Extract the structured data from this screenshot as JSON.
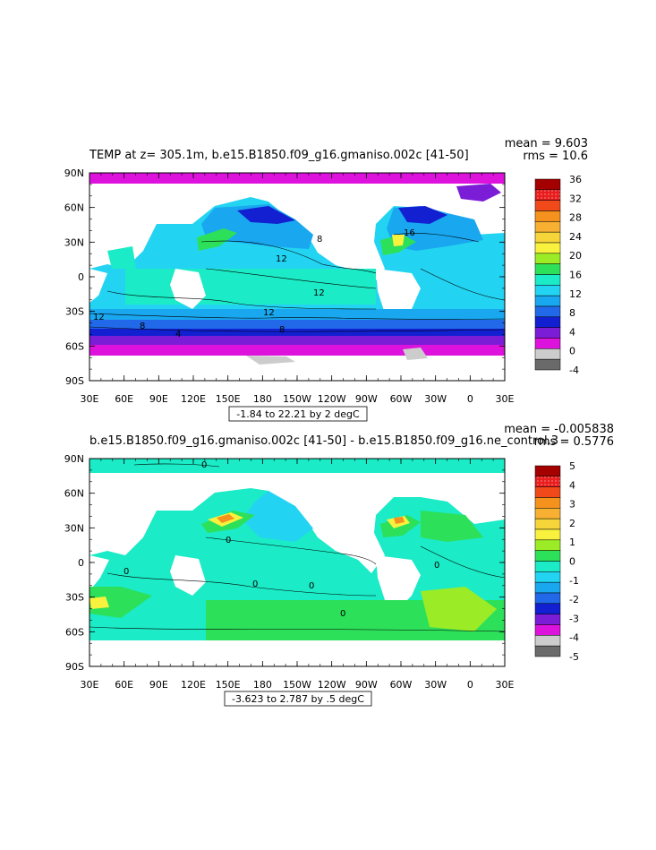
{
  "chart_data": [
    {
      "type": "heatmap",
      "title": "TEMP at z= 305.1m, b.e15.B1850.f09_g16.gmaniso.002c [41-50]",
      "stats": {
        "mean": "mean = 9.603",
        "rms": "rms = 10.6"
      },
      "range_label": "-1.84 to 22.21 by 2 degC",
      "xticks": [
        "30E",
        "60E",
        "90E",
        "120E",
        "150E",
        "180",
        "150W",
        "120W",
        "90W",
        "60W",
        "30W",
        "0",
        "30E"
      ],
      "yticks": [
        "90N",
        "60N",
        "30N",
        "0",
        "30S",
        "60S",
        "90S"
      ],
      "xlim": [
        30,
        390
      ],
      "ylim": [
        -90,
        90
      ],
      "colorbar": {
        "levels": [
          "36",
          "32",
          "28",
          "24",
          "20",
          "16",
          "12",
          "8",
          "4",
          "0",
          "-4"
        ],
        "colors": [
          "#a50000",
          "#dd1a1a",
          "#f04a1a",
          "#f5921e",
          "#f7b032",
          "#f6d53a",
          "#f8f23e",
          "#9bec26",
          "#2ce05a",
          "#1bebc6",
          "#23d4f2",
          "#19a7ef",
          "#2169e8",
          "#1220d2",
          "#7b1cd6",
          "#dd12dd",
          "#cccccc",
          "#6a6a6a"
        ]
      },
      "contour_labels": [
        "16",
        "8",
        "12",
        "12",
        "12",
        "12",
        "8",
        "8",
        "4"
      ]
    },
    {
      "type": "heatmap",
      "title": "b.e15.B1850.f09_g16.gmaniso.002c [41-50] - b.e15.B1850.f09_g16.ne_control.3",
      "stats": {
        "mean": "mean = -0.005838",
        "rms": "rms = 0.5776"
      },
      "range_label": "-3.623 to 2.787 by .5 degC",
      "xticks": [
        "30E",
        "60E",
        "90E",
        "120E",
        "150E",
        "180",
        "150W",
        "120W",
        "90W",
        "60W",
        "30W",
        "0",
        "30E"
      ],
      "yticks": [
        "90N",
        "60N",
        "30N",
        "0",
        "30S",
        "60S",
        "90S"
      ],
      "xlim": [
        30,
        390
      ],
      "ylim": [
        -90,
        90
      ],
      "colorbar": {
        "levels": [
          "5",
          "4",
          "3",
          "2",
          "1",
          "0",
          "-1",
          "-2",
          "-3",
          "-4",
          "-5"
        ],
        "colors": [
          "#a50000",
          "#dd1a1a",
          "#f04a1a",
          "#f5921e",
          "#f7b032",
          "#f6d53a",
          "#f8f23e",
          "#9bec26",
          "#2ce05a",
          "#1bebc6",
          "#23d4f2",
          "#19a7ef",
          "#2169e8",
          "#1220d2",
          "#7b1cd6",
          "#dd12dd",
          "#cccccc",
          "#6a6a6a"
        ]
      },
      "contour_labels": [
        "0",
        "0",
        "0",
        "0",
        "0",
        "0",
        "0"
      ]
    }
  ]
}
